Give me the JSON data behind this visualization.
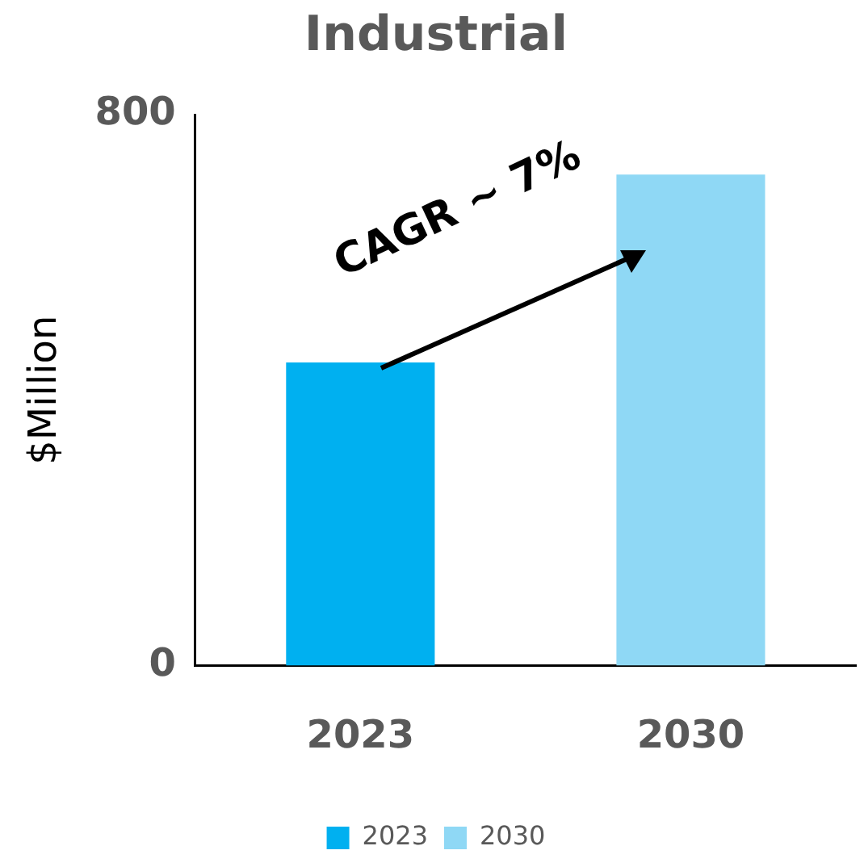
{
  "chart_data": {
    "type": "bar",
    "title": "Industrial",
    "ylabel": "$Million",
    "categories": [
      "2023",
      "2030"
    ],
    "series": [
      {
        "name": "2023",
        "color": "#00b0f0",
        "values": [
          440,
          null
        ]
      },
      {
        "name": "2030",
        "color": "#8fd8f5",
        "values": [
          null,
          713
        ]
      }
    ],
    "ylim": [
      0,
      800
    ],
    "yticks": [
      0,
      800
    ],
    "grid": false,
    "legend": "bottom",
    "annotations": [
      {
        "text": "CAGR ~ 7%"
      }
    ]
  }
}
